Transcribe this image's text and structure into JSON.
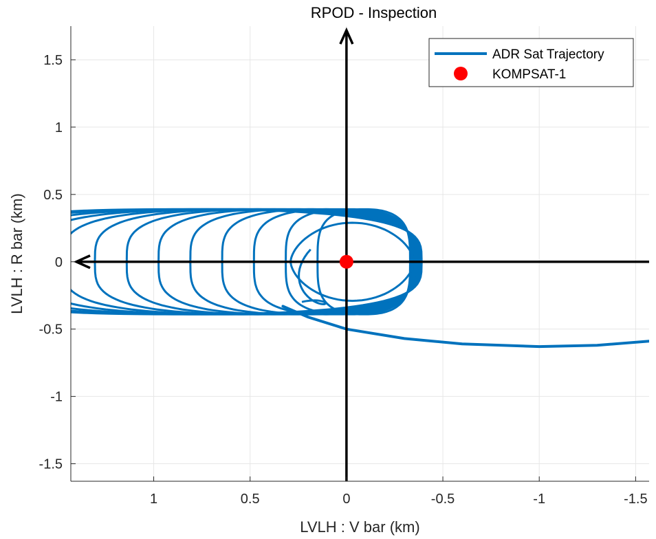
{
  "chart_data": {
    "type": "line",
    "title": "RPOD - Inspection",
    "xlabel": "LVLH : V bar (km)",
    "ylabel": "LVLH : R bar (km)",
    "x_reversed": true,
    "xlim": [
      1.43,
      -1.57
    ],
    "ylim": [
      -1.63,
      1.75
    ],
    "x_ticks": [
      1,
      0.5,
      0,
      -0.5,
      -1,
      -1.5
    ],
    "x_tick_labels": [
      "1",
      "0.5",
      "0",
      "-0.5",
      "-1",
      "-1.5"
    ],
    "y_ticks": [
      -1.5,
      -1,
      -0.5,
      0,
      0.5,
      1,
      1.5
    ],
    "y_tick_labels": [
      "-1.5",
      "-1",
      "-0.5",
      "0",
      "0.5",
      "1",
      "1.5"
    ],
    "grid": true,
    "legend_position": "top-right",
    "colors": {
      "trajectory": "#0072BD",
      "target": "#FF0000",
      "axes_arrows": "#000000"
    },
    "series": [
      {
        "name": "ADR Sat Trajectory",
        "kind": "line",
        "description_loops": {
          "center_x_start": -0.09,
          "center_x_step": 0.08,
          "half_width_start": 0.24,
          "half_width_step": 0.085,
          "loop_count": 13,
          "half_height": 0.39,
          "inner_start_radius": 0.06
        },
        "approach_arc": [
          {
            "x": -1.57,
            "y": -0.59
          },
          {
            "x": -1.3,
            "y": -0.62
          },
          {
            "x": -1.0,
            "y": -0.63
          },
          {
            "x": -0.6,
            "y": -0.61
          },
          {
            "x": -0.3,
            "y": -0.57
          },
          {
            "x": 0.0,
            "y": -0.5
          },
          {
            "x": 0.2,
            "y": -0.41
          },
          {
            "x": 0.33,
            "y": -0.33
          }
        ]
      },
      {
        "name": "KOMPSAT-1",
        "kind": "marker",
        "x": 0,
        "y": 0
      }
    ],
    "legend": [
      {
        "label": "ADR Sat Trajectory",
        "symbol": "line"
      },
      {
        "label": "KOMPSAT-1",
        "symbol": "dot"
      }
    ]
  }
}
